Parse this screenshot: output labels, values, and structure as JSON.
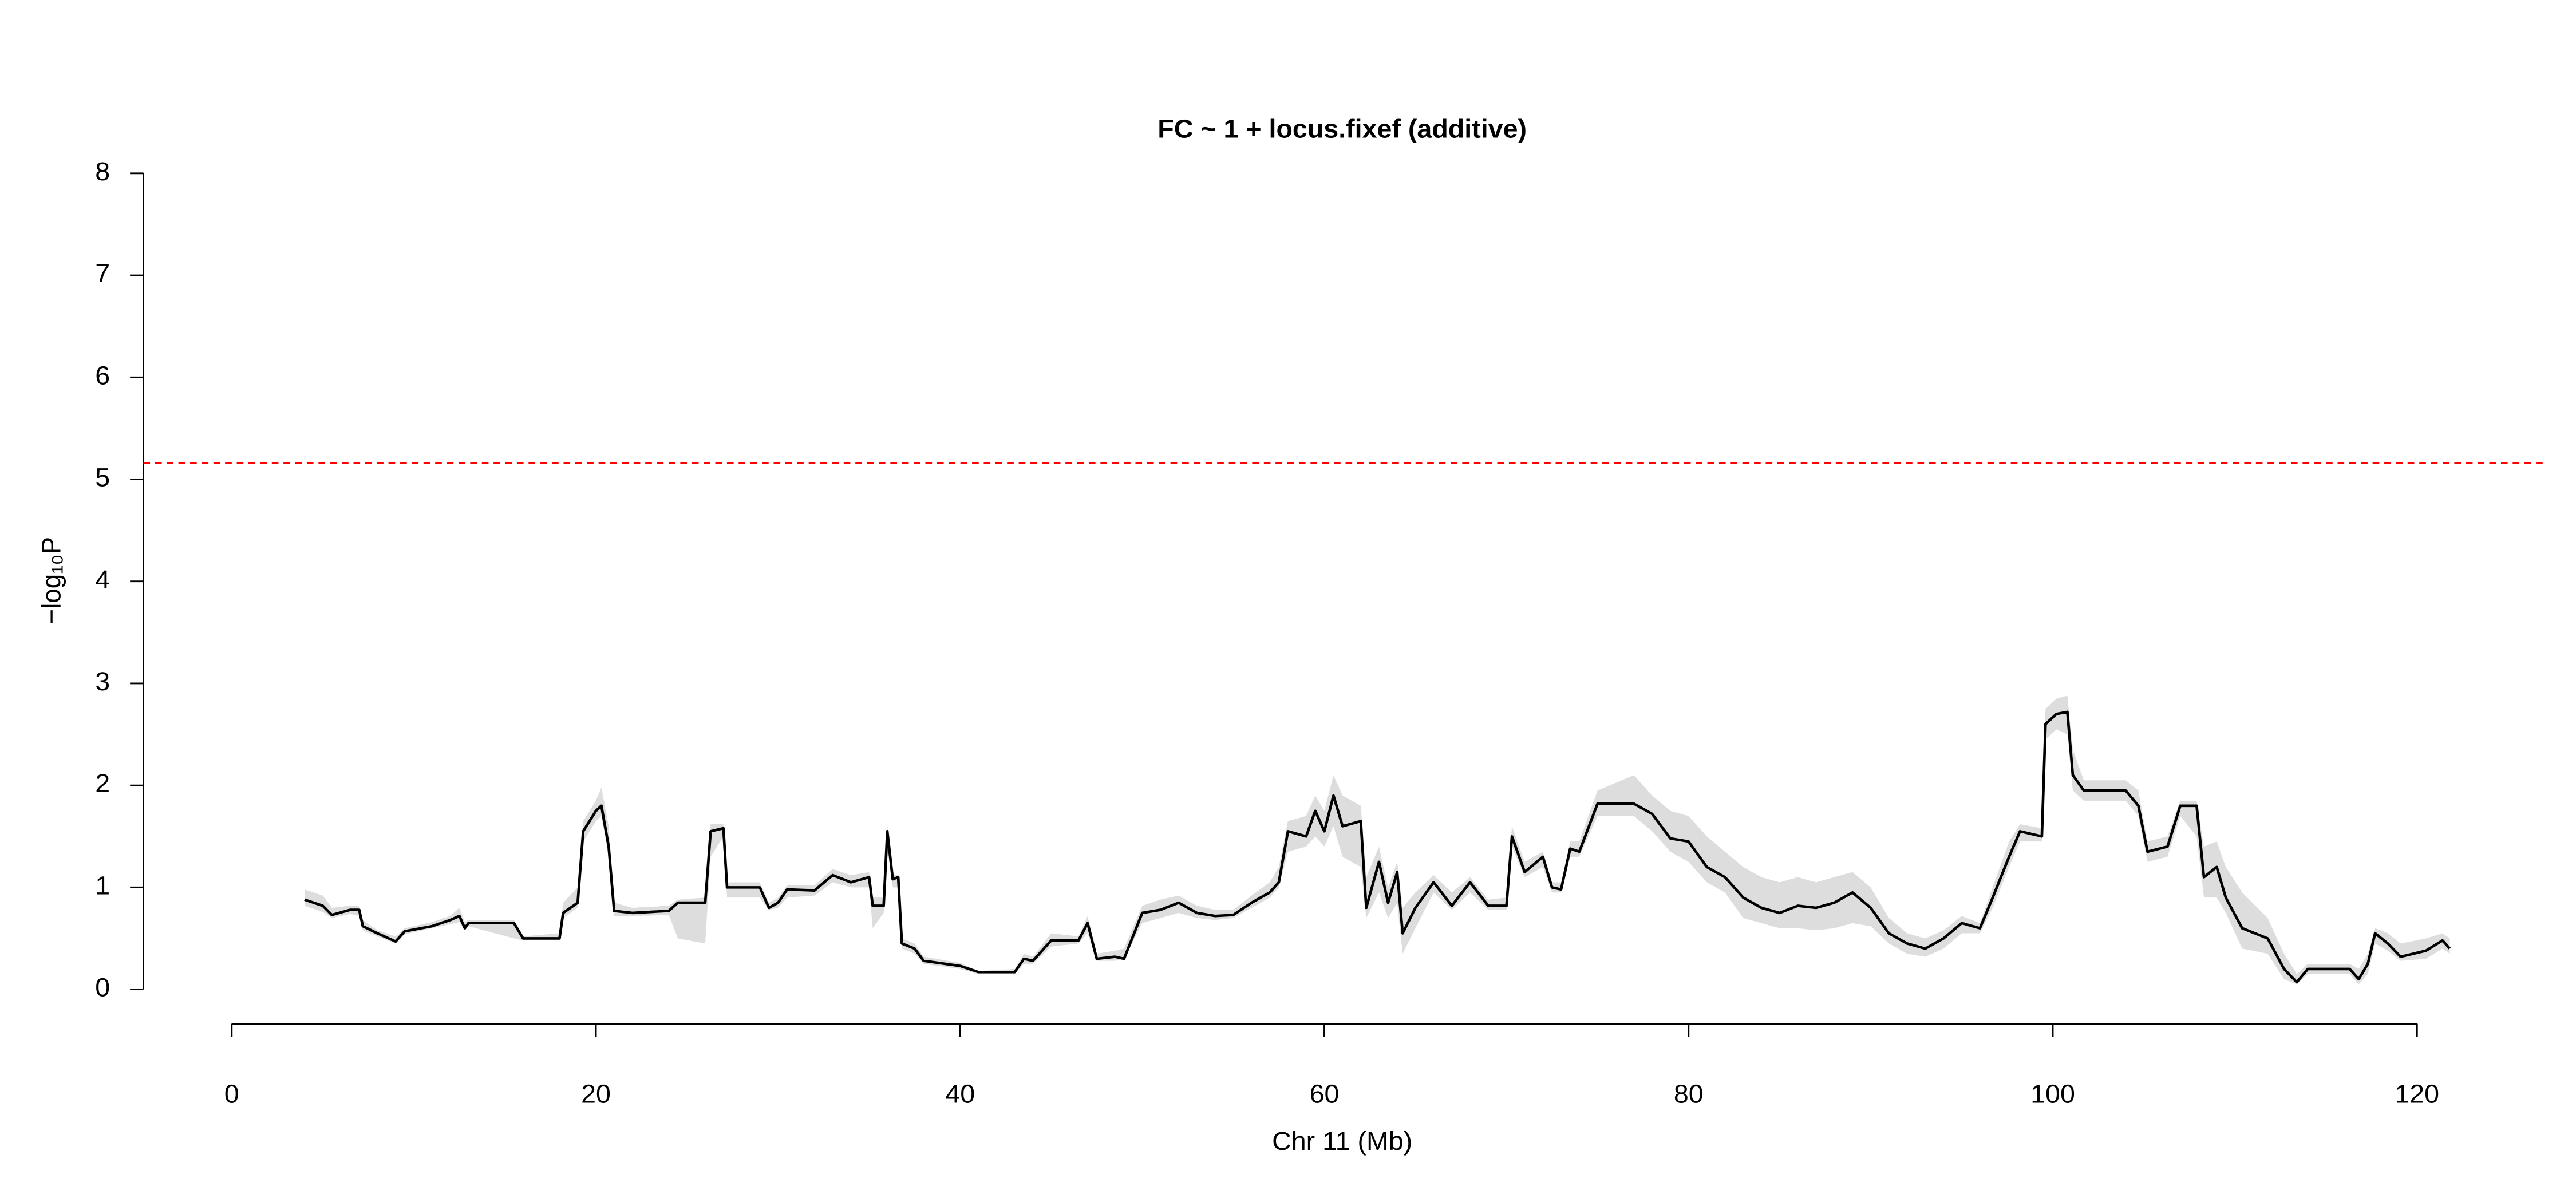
{
  "chart_data": {
    "type": "line",
    "title": "FC ~ 1 + locus.fixef (additive)",
    "xlabel": "Chr 11 (Mb)",
    "ylabel": "−log₁₀P",
    "xlim": [
      -4.85,
      126.9
    ],
    "xticks": [
      0,
      20,
      40,
      60,
      80,
      100,
      120
    ],
    "ylim": [
      0,
      8
    ],
    "yticks": [
      0,
      1,
      2,
      3,
      4,
      5,
      6,
      7,
      8
    ],
    "threshold": {
      "value": 5.16,
      "color": "#ff0000"
    },
    "x": [
      4,
      5,
      5.5,
      6.5,
      7,
      7.2,
      8,
      9,
      9.5,
      11,
      12,
      12.5,
      12.8,
      13,
      15.5,
      16,
      18,
      18.2,
      19,
      19.3,
      20,
      20.3,
      20.7,
      21,
      22,
      24,
      24.5,
      26,
      26.3,
      27,
      27.2,
      29,
      29.5,
      30,
      30.5,
      32,
      33,
      34,
      35,
      35.2,
      35.8,
      36,
      36.3,
      36.6,
      36.8,
      37.5,
      38,
      40,
      41,
      43,
      43.5,
      44,
      45,
      46.5,
      47,
      47.5,
      48.5,
      49,
      50,
      51,
      52,
      53,
      54,
      55,
      56,
      57,
      57.5,
      58,
      59,
      59.5,
      60,
      60.5,
      61,
      62,
      62.3,
      63,
      63.5,
      64,
      64.3,
      65,
      66,
      67,
      68,
      69,
      70,
      70.3,
      71,
      72,
      72.5,
      73,
      73.5,
      74,
      75,
      77,
      78,
      79,
      80,
      81,
      82,
      83,
      84,
      85,
      86,
      87,
      88,
      89,
      90,
      91,
      92,
      93,
      94,
      95,
      96,
      96.7,
      97.6,
      98.2,
      99.4,
      99.6,
      100.2,
      100.8,
      101.1,
      101.7,
      103,
      104,
      104.7,
      105.2,
      106.3,
      107,
      107.9,
      108.3,
      109,
      109.5,
      110.4,
      111.8,
      112.7,
      113.4,
      114,
      116.3,
      116.8,
      117.3,
      117.7,
      118.4,
      119.1,
      120.5,
      121.4,
      121.8
    ],
    "series": [
      {
        "color": "#000000",
        "values": [
          0.88,
          0.82,
          0.73,
          0.78,
          0.78,
          0.62,
          0.55,
          0.47,
          0.57,
          0.62,
          0.68,
          0.72,
          0.6,
          0.65,
          0.65,
          0.5,
          0.5,
          0.75,
          0.85,
          1.55,
          1.75,
          1.8,
          1.4,
          0.77,
          0.75,
          0.77,
          0.85,
          0.85,
          1.55,
          1.58,
          1.0,
          1.0,
          0.8,
          0.85,
          0.98,
          0.97,
          1.12,
          1.05,
          1.1,
          0.82,
          0.82,
          1.55,
          1.08,
          1.1,
          0.45,
          0.4,
          0.28,
          0.23,
          0.17,
          0.17,
          0.3,
          0.28,
          0.48,
          0.48,
          0.65,
          0.3,
          0.32,
          0.3,
          0.75,
          0.78,
          0.85,
          0.75,
          0.72,
          0.73,
          0.85,
          0.95,
          1.05,
          1.55,
          1.5,
          1.75,
          1.55,
          1.9,
          1.6,
          1.65,
          0.8,
          1.25,
          0.85,
          1.15,
          0.55,
          0.8,
          1.05,
          0.82,
          1.05,
          0.82,
          0.82,
          1.5,
          1.15,
          1.3,
          1.0,
          0.98,
          1.38,
          1.35,
          1.82,
          1.82,
          1.72,
          1.48,
          1.45,
          1.2,
          1.1,
          0.9,
          0.8,
          0.75,
          0.82,
          0.8,
          0.85,
          0.95,
          0.8,
          0.55,
          0.45,
          0.4,
          0.5,
          0.65,
          0.6,
          0.9,
          1.3,
          1.55,
          1.5,
          2.6,
          2.7,
          2.72,
          2.1,
          1.95,
          1.95,
          1.95,
          1.8,
          1.35,
          1.4,
          1.8,
          1.8,
          1.1,
          1.2,
          0.9,
          0.6,
          0.5,
          0.2,
          0.07,
          0.2,
          0.2,
          0.1,
          0.25,
          0.55,
          0.45,
          0.32,
          0.38,
          0.48,
          0.4
        ]
      }
    ],
    "band": {
      "color": "#dddddd",
      "lower": [
        0.82,
        0.76,
        0.7,
        0.74,
        0.72,
        0.58,
        0.52,
        0.45,
        0.54,
        0.6,
        0.64,
        0.66,
        0.58,
        0.62,
        0.5,
        0.48,
        0.48,
        0.7,
        0.8,
        1.45,
        1.65,
        1.7,
        1.3,
        0.72,
        0.72,
        0.73,
        0.5,
        0.45,
        1.3,
        1.5,
        0.9,
        0.9,
        0.78,
        0.8,
        0.9,
        0.92,
        1.05,
        1.0,
        1.0,
        0.6,
        0.75,
        1.4,
        1.0,
        1.0,
        0.4,
        0.35,
        0.25,
        0.2,
        0.15,
        0.15,
        0.25,
        0.25,
        0.42,
        0.45,
        0.55,
        0.28,
        0.28,
        0.3,
        0.65,
        0.7,
        0.75,
        0.7,
        0.68,
        0.7,
        0.8,
        0.9,
        1.0,
        1.35,
        1.4,
        1.5,
        1.4,
        1.6,
        1.3,
        1.2,
        0.7,
        0.95,
        0.7,
        0.85,
        0.35,
        0.6,
        0.95,
        0.78,
        0.95,
        0.78,
        0.78,
        1.4,
        1.1,
        1.2,
        0.95,
        0.95,
        1.3,
        1.3,
        1.7,
        1.7,
        1.55,
        1.35,
        1.25,
        1.05,
        0.95,
        0.7,
        0.65,
        0.6,
        0.6,
        0.58,
        0.6,
        0.65,
        0.62,
        0.45,
        0.35,
        0.32,
        0.4,
        0.55,
        0.55,
        0.8,
        1.2,
        1.45,
        1.45,
        2.45,
        2.55,
        2.5,
        1.95,
        1.85,
        1.85,
        1.85,
        1.7,
        1.25,
        1.3,
        1.7,
        1.5,
        0.9,
        0.9,
        0.75,
        0.4,
        0.35,
        0.1,
        0.05,
        0.15,
        0.15,
        0.05,
        0.15,
        0.45,
        0.38,
        0.28,
        0.3,
        0.4,
        0.35
      ],
      "upper": [
        0.98,
        0.92,
        0.8,
        0.82,
        0.82,
        0.68,
        0.58,
        0.52,
        0.6,
        0.66,
        0.72,
        0.8,
        0.66,
        0.68,
        0.68,
        0.52,
        0.55,
        0.85,
        1.0,
        1.65,
        1.85,
        1.98,
        1.6,
        0.85,
        0.8,
        0.82,
        0.88,
        0.9,
        1.62,
        1.62,
        1.05,
        1.05,
        0.85,
        0.9,
        1.02,
        1.02,
        1.18,
        1.12,
        1.15,
        0.9,
        0.9,
        1.6,
        1.12,
        1.12,
        0.5,
        0.45,
        0.32,
        0.26,
        0.18,
        0.2,
        0.35,
        0.32,
        0.55,
        0.52,
        0.72,
        0.35,
        0.38,
        0.4,
        0.82,
        0.88,
        0.92,
        0.82,
        0.78,
        0.78,
        0.92,
        1.05,
        1.2,
        1.65,
        1.7,
        1.9,
        1.75,
        2.1,
        1.9,
        1.8,
        1.1,
        1.4,
        1.0,
        1.25,
        0.8,
        0.95,
        1.12,
        0.95,
        1.1,
        0.88,
        0.9,
        1.6,
        1.25,
        1.35,
        1.05,
        1.05,
        1.45,
        1.45,
        1.95,
        2.1,
        1.9,
        1.75,
        1.7,
        1.5,
        1.35,
        1.2,
        1.1,
        1.05,
        1.1,
        1.05,
        1.1,
        1.15,
        1.0,
        0.7,
        0.55,
        0.5,
        0.58,
        0.72,
        0.65,
        1.0,
        1.45,
        1.62,
        1.58,
        2.75,
        2.85,
        2.88,
        2.35,
        2.05,
        2.05,
        2.05,
        1.95,
        1.45,
        1.5,
        1.85,
        1.85,
        1.4,
        1.45,
        1.2,
        0.95,
        0.7,
        0.35,
        0.15,
        0.25,
        0.25,
        0.2,
        0.35,
        0.6,
        0.55,
        0.45,
        0.5,
        0.55,
        0.5
      ]
    }
  }
}
